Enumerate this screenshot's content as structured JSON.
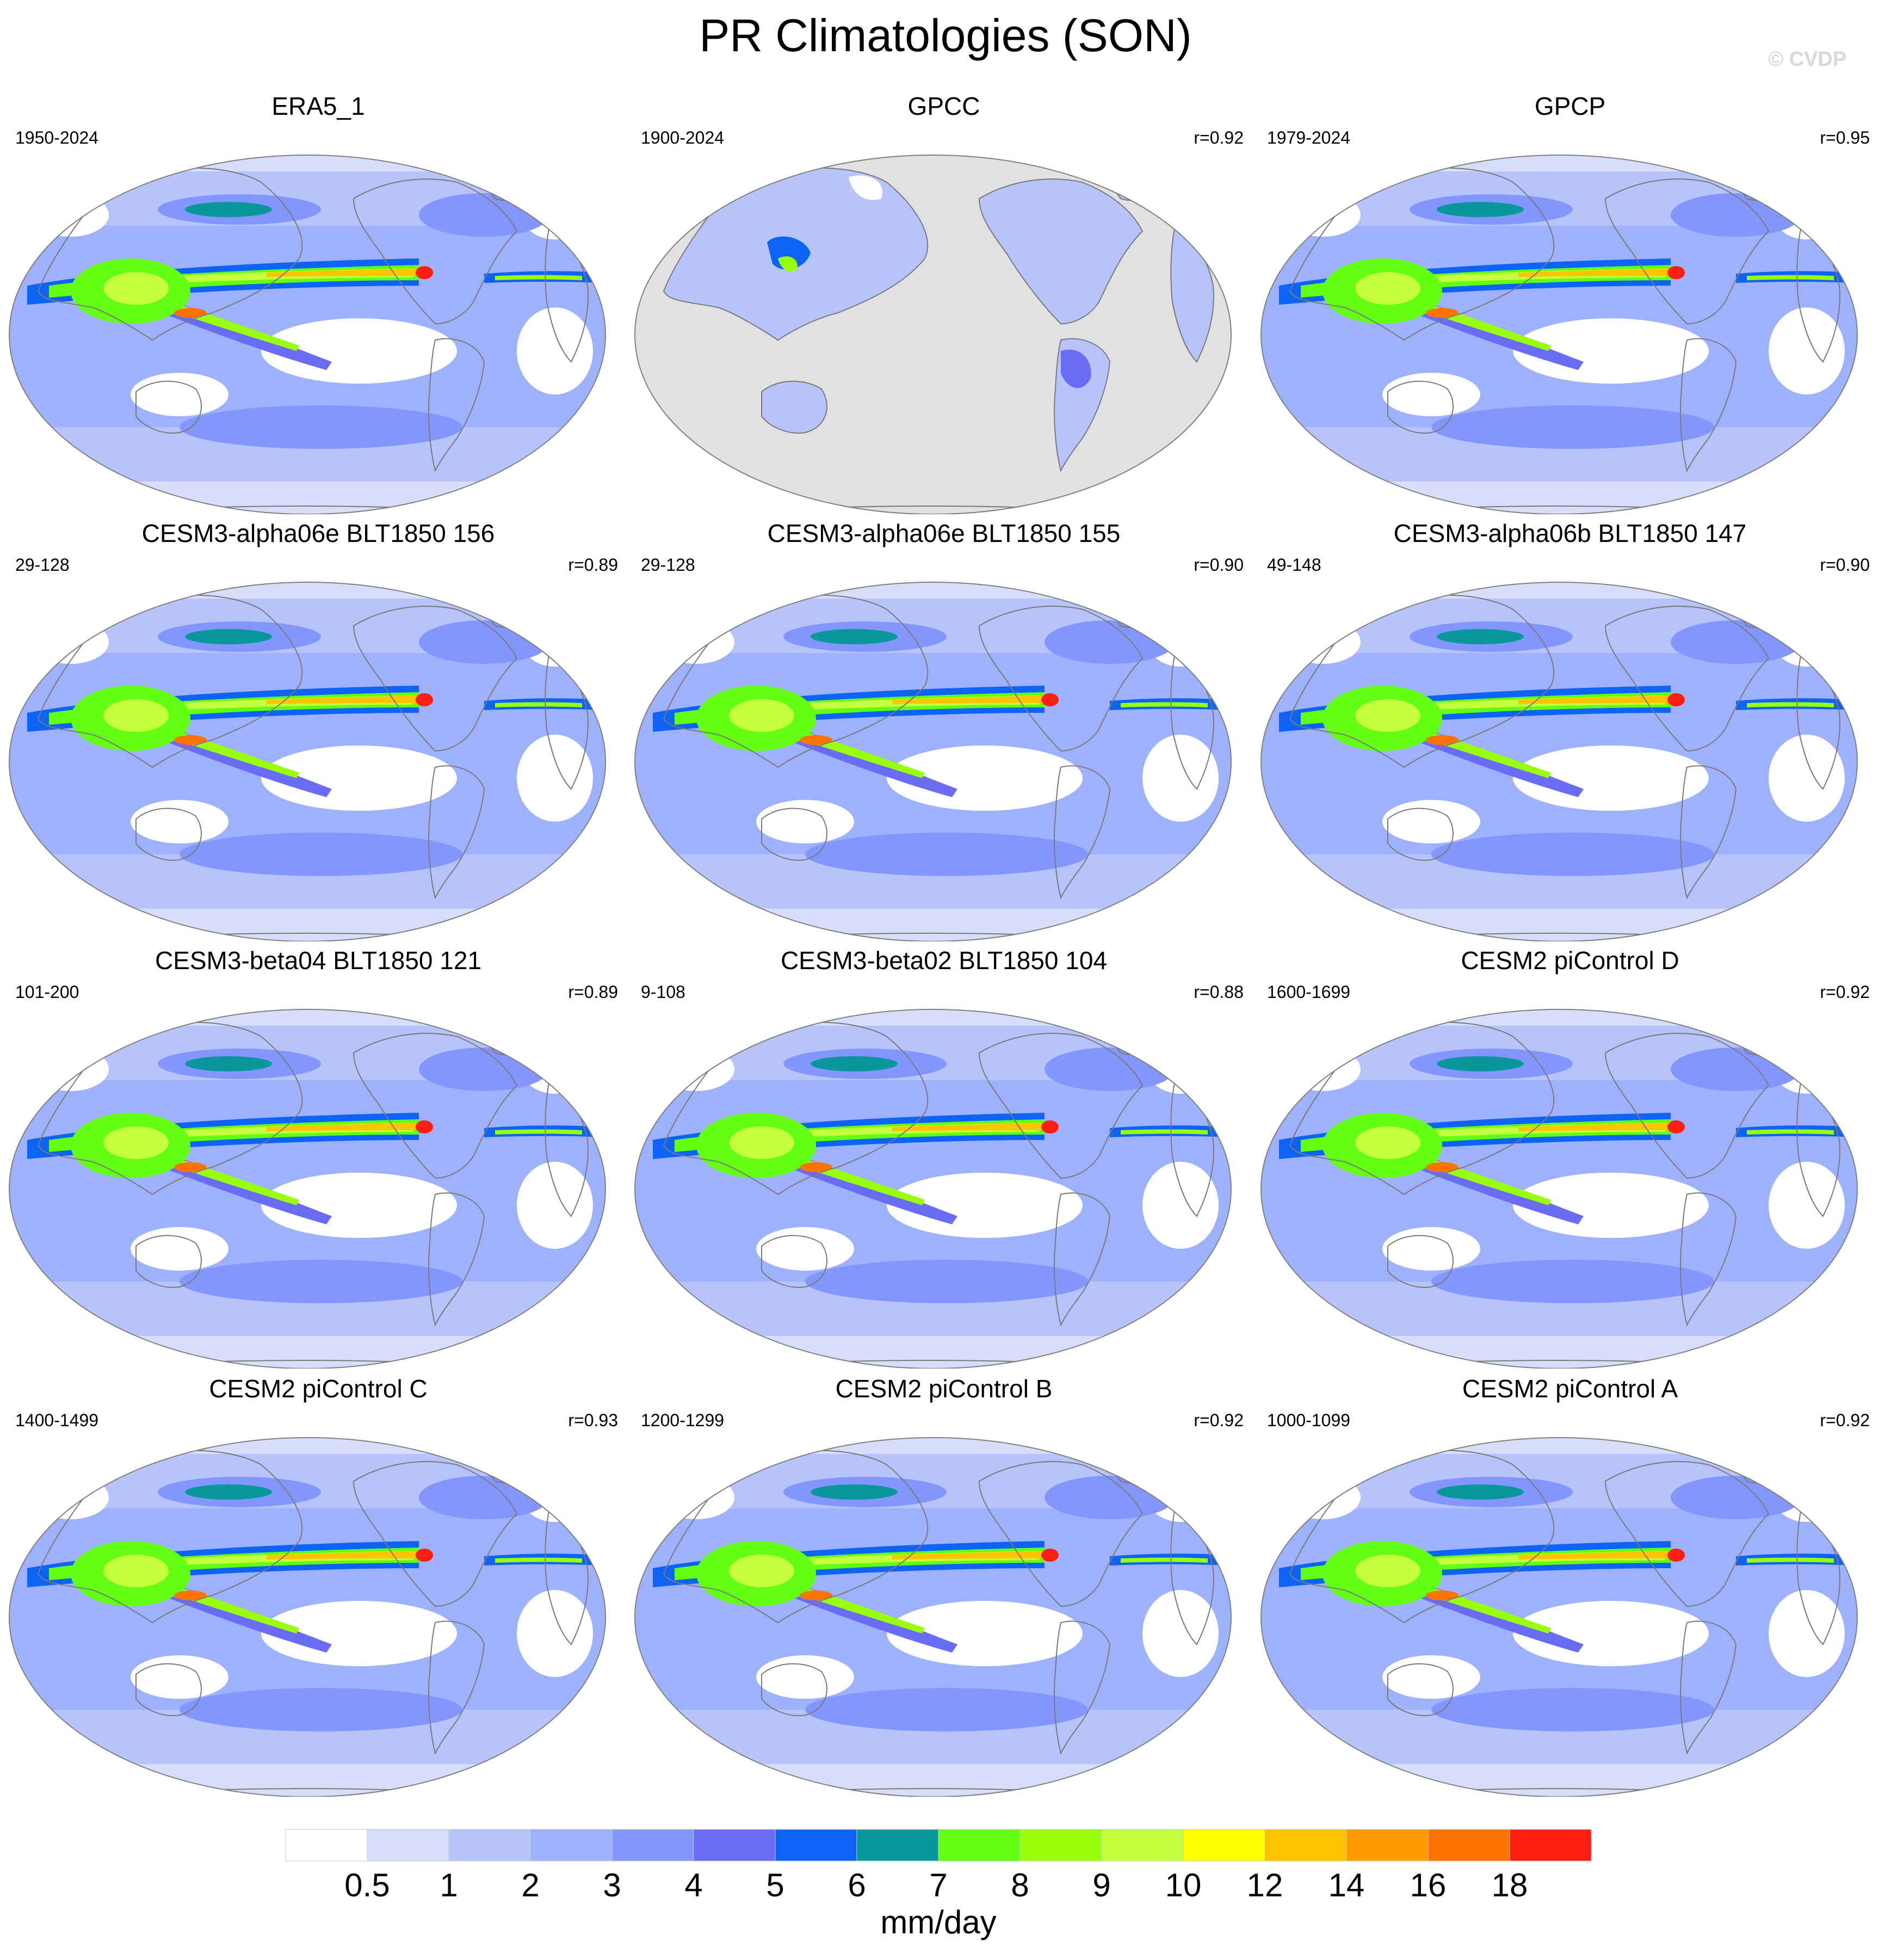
{
  "title": "PR Climatologies (SON)",
  "credit": "© CVDP",
  "colors": {
    "land_mask_gray": "#e1e1e1",
    "coastline": "#7a7a7a"
  },
  "panels": [
    {
      "title": "ERA5_1",
      "years": "1950-2024",
      "corr": ""
    },
    {
      "title": "GPCC",
      "years": "1900-2024",
      "corr": "r=0.92",
      "land_only": true
    },
    {
      "title": "GPCP",
      "years": "1979-2024",
      "corr": "r=0.95"
    },
    {
      "title": "CESM3-alpha06e BLT1850 156",
      "years": "29-128",
      "corr": "r=0.89"
    },
    {
      "title": "CESM3-alpha06e BLT1850 155",
      "years": "29-128",
      "corr": "r=0.90"
    },
    {
      "title": "CESM3-alpha06b BLT1850 147",
      "years": "49-148",
      "corr": "r=0.90"
    },
    {
      "title": "CESM3-beta04 BLT1850 121",
      "years": "101-200",
      "corr": "r=0.89"
    },
    {
      "title": "CESM3-beta02 BLT1850 104",
      "years": "9-108",
      "corr": "r=0.88"
    },
    {
      "title": "CESM2 piControl D",
      "years": "1600-1699",
      "corr": "r=0.92"
    },
    {
      "title": "CESM2 piControl C",
      "years": "1400-1499",
      "corr": "r=0.93"
    },
    {
      "title": "CESM2 piControl B",
      "years": "1200-1299",
      "corr": "r=0.92"
    },
    {
      "title": "CESM2 piControl A",
      "years": "1000-1099",
      "corr": "r=0.92"
    }
  ],
  "colorbar": {
    "unit": "mm/day",
    "levels": [
      "0.5",
      "1",
      "2",
      "3",
      "4",
      "5",
      "6",
      "7",
      "8",
      "9",
      "10",
      "12",
      "14",
      "16",
      "18"
    ],
    "colors": [
      "#ffffff",
      "#d6defa",
      "#b6c4fb",
      "#9db1fc",
      "#8396fd",
      "#6a6cf5",
      "#0c63f5",
      "#08989c",
      "#63ff13",
      "#98ff0c",
      "#c4ff3f",
      "#ffff00",
      "#ffc400",
      "#ff9b00",
      "#ff7300",
      "#ff1e10"
    ]
  }
}
